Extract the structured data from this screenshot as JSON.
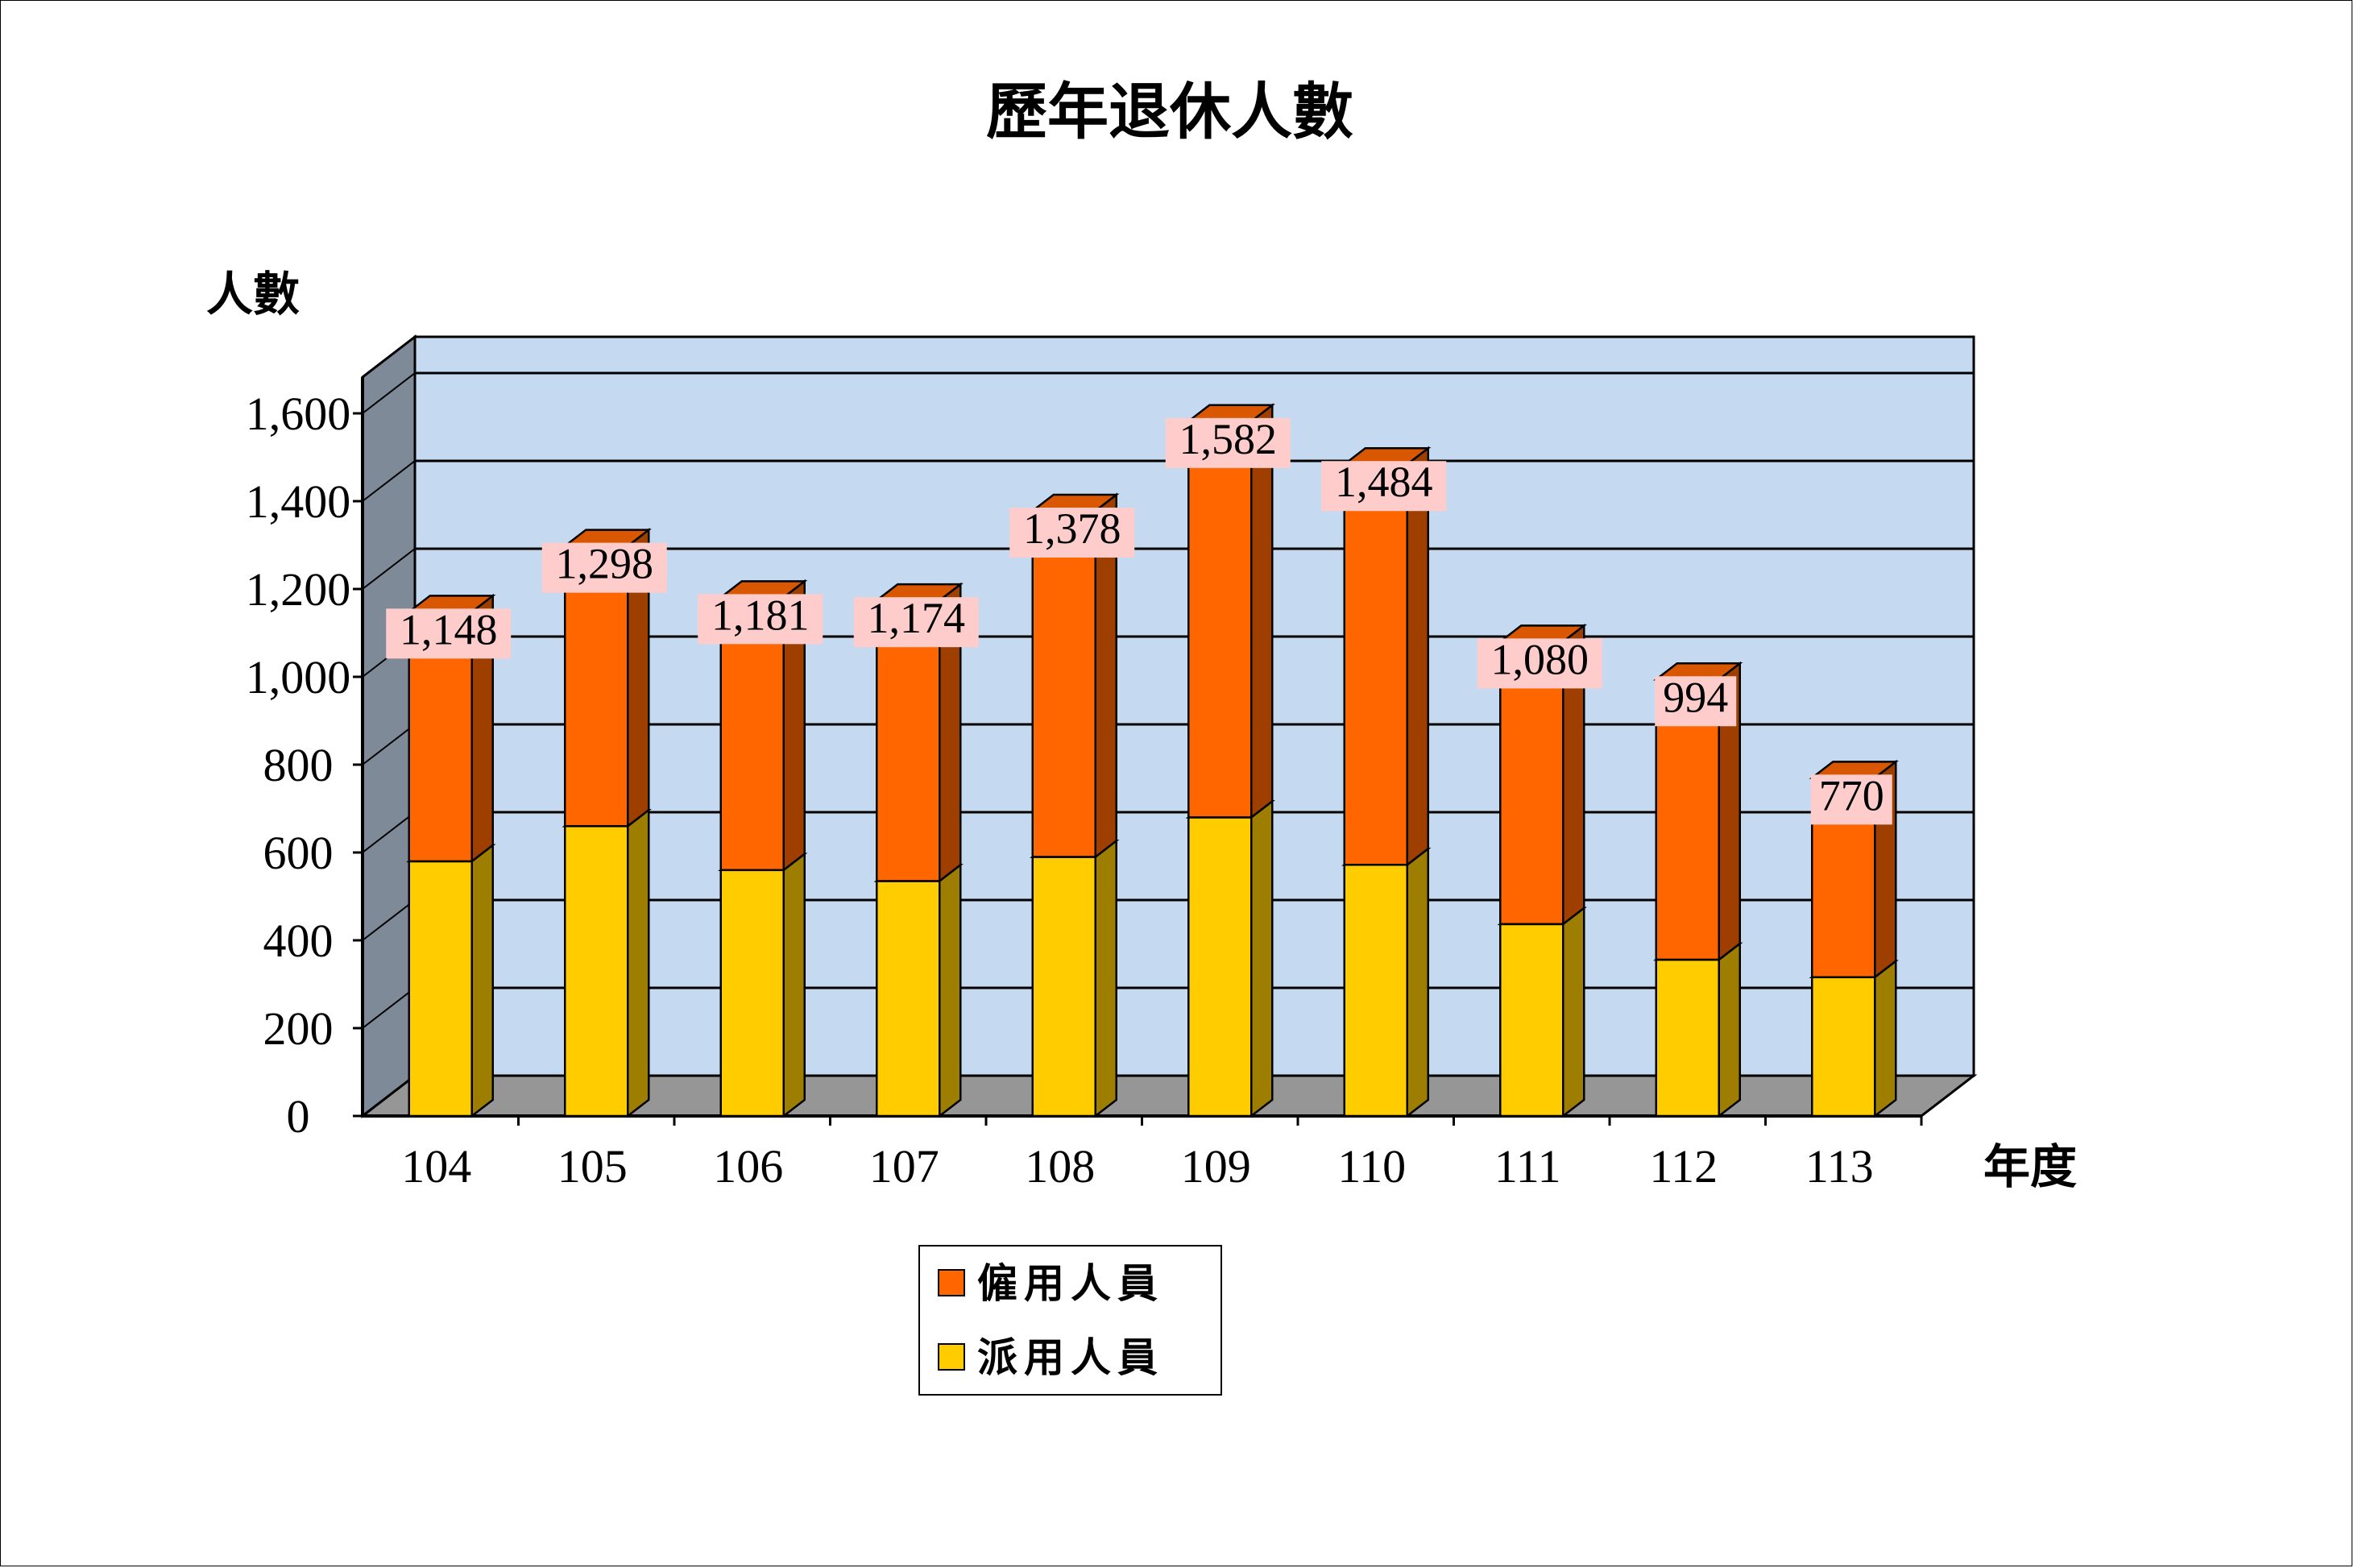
{
  "chart_data": {
    "type": "bar",
    "stacked": true,
    "three_d": true,
    "title": "歷年退休人數",
    "ylabel": "人數",
    "xlabel": "年度",
    "categories": [
      "104",
      "105",
      "106",
      "107",
      "108",
      "109",
      "110",
      "111",
      "112",
      "113"
    ],
    "ylim": [
      0,
      1600
    ],
    "yticks": [
      "0",
      "200",
      "400",
      "600",
      "800",
      "1,000",
      "1,200",
      "1,400",
      "1,600"
    ],
    "series": [
      {
        "name": "派用人員",
        "color": "#FFCC00",
        "values": [
          580,
          660,
          560,
          535,
          590,
          680,
          572,
          437,
          356,
          316
        ]
      },
      {
        "name": "僱用人員",
        "color": "#FF6600",
        "values": [
          568,
          638,
          621,
          639,
          788,
          902,
          912,
          643,
          638,
          454
        ]
      }
    ],
    "totals": [
      "1,148",
      "1,298",
      "1,181",
      "1,174",
      "1,378",
      "1,582",
      "1,484",
      "1,080",
      "994",
      "770"
    ],
    "legend": {
      "placement": "bottom-center",
      "order": [
        "僱用人員",
        "派用人員"
      ]
    },
    "grid": true,
    "colors": {
      "wall": "#C5D9F1",
      "side_wall": "#7F8A99",
      "floor": "#969696",
      "label_bg": "#FFCCCC"
    }
  }
}
